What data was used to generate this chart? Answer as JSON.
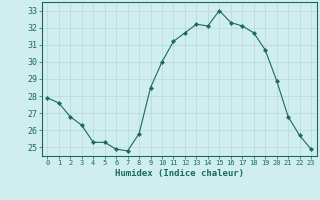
{
  "x": [
    0,
    1,
    2,
    3,
    4,
    5,
    6,
    7,
    8,
    9,
    10,
    11,
    12,
    13,
    14,
    15,
    16,
    17,
    18,
    19,
    20,
    21,
    22,
    23
  ],
  "y": [
    27.9,
    27.6,
    26.8,
    26.3,
    25.3,
    25.3,
    24.9,
    24.8,
    25.8,
    28.5,
    30.0,
    31.2,
    31.7,
    32.2,
    32.1,
    33.0,
    32.3,
    32.1,
    31.7,
    30.7,
    28.9,
    26.8,
    25.7,
    24.9
  ],
  "line_color": "#1a6b5a",
  "marker": "D",
  "marker_size": 2,
  "bg_color": "#d0eeee",
  "grid_color": "#b8d8d8",
  "xlabel": "Humidex (Indice chaleur)",
  "ylabel_ticks": [
    25,
    26,
    27,
    28,
    29,
    30,
    31,
    32,
    33
  ],
  "xlim": [
    -0.5,
    23.5
  ],
  "ylim": [
    24.5,
    33.5
  ],
  "xticks": [
    0,
    1,
    2,
    3,
    4,
    5,
    6,
    7,
    8,
    9,
    10,
    11,
    12,
    13,
    14,
    15,
    16,
    17,
    18,
    19,
    20,
    21,
    22,
    23
  ],
  "label_color": "#1a6b5a",
  "tick_color": "#1a6b5a"
}
